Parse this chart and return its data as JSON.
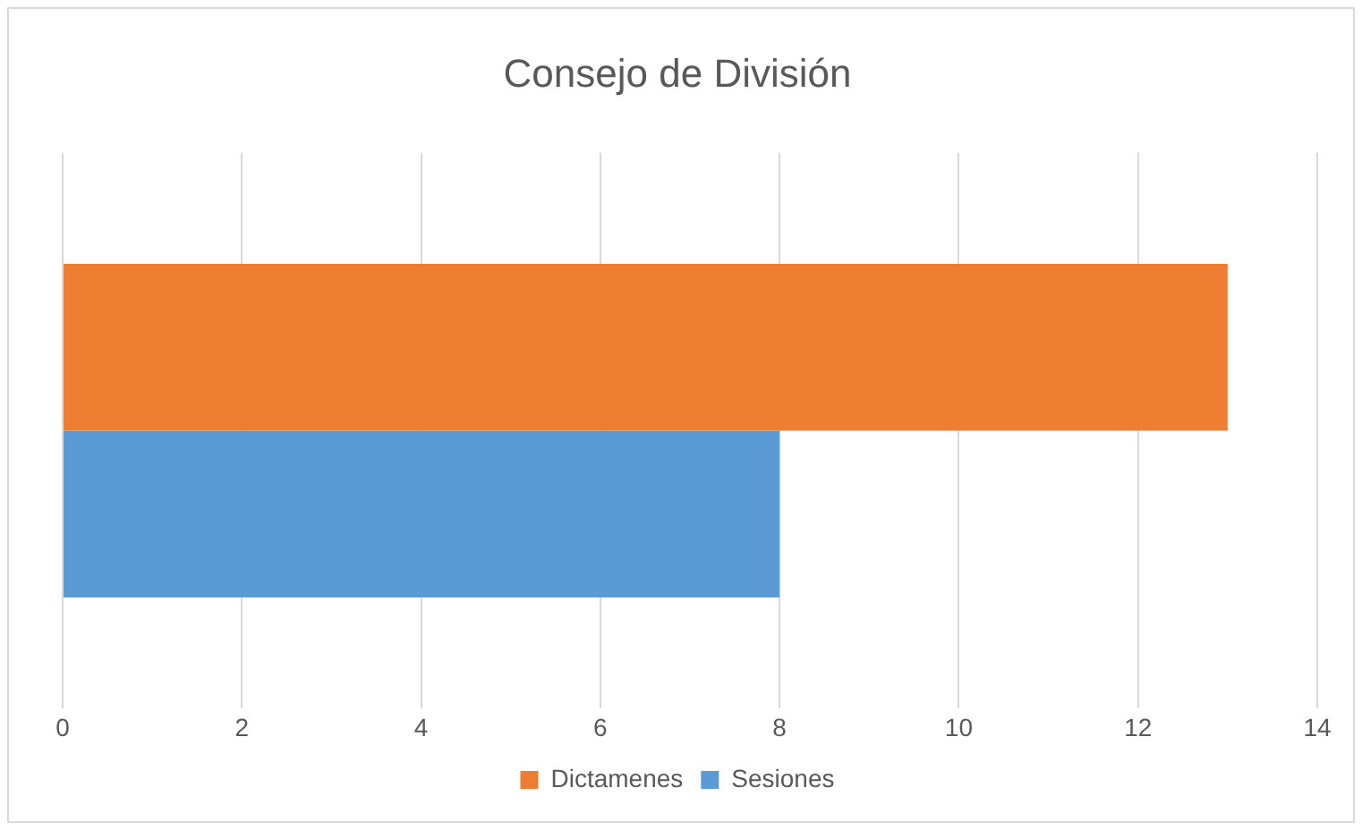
{
  "chart_data": {
    "type": "bar",
    "orientation": "horizontal",
    "title": "Consejo de División",
    "categories": [
      null
    ],
    "series": [
      {
        "name": "Dictamenes",
        "color": "#ed7d31",
        "values": [
          13
        ]
      },
      {
        "name": "Sesiones",
        "color": "#5b9bd5",
        "values": [
          8
        ]
      }
    ],
    "xlim": [
      0,
      14
    ],
    "xticks": [
      0,
      2,
      4,
      6,
      8,
      10,
      12,
      14
    ],
    "grid": "x",
    "legend": "bottom"
  }
}
